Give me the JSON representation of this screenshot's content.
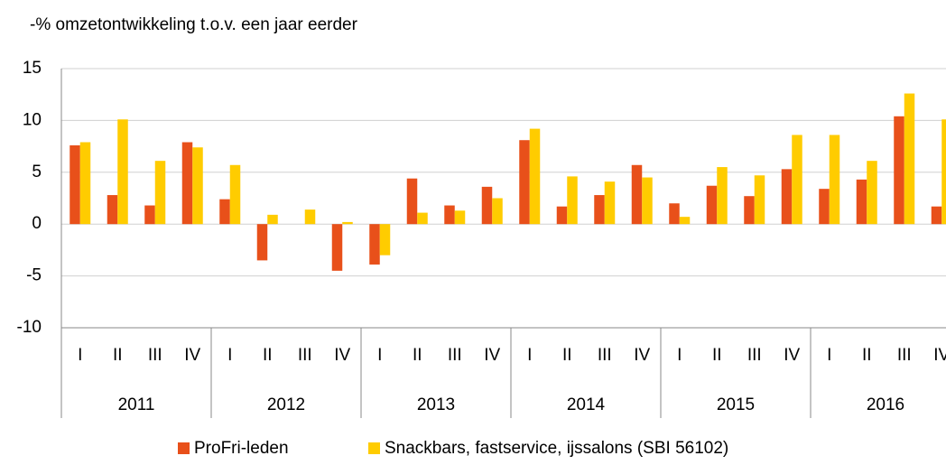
{
  "chart_data": {
    "type": "bar",
    "y_label": "-% omzetontwikkeling t.o.v. een jaar eerder",
    "categories": [
      "I",
      "II",
      "III",
      "IV",
      "I",
      "II",
      "III",
      "IV",
      "I",
      "II",
      "III",
      "IV",
      "I",
      "II",
      "III",
      "IV",
      "I",
      "II",
      "III",
      "IV",
      "I",
      "II",
      "III",
      "IV"
    ],
    "years": [
      "2011",
      "2012",
      "2013",
      "2014",
      "2015",
      "2016"
    ],
    "series": [
      {
        "name": "ProFri-leden",
        "color": "#e8501a",
        "values": [
          7.6,
          2.8,
          1.8,
          7.9,
          2.4,
          -3.5,
          0,
          -4.5,
          -3.9,
          4.4,
          1.8,
          3.6,
          8.1,
          1.7,
          2.8,
          5.7,
          2.0,
          3.7,
          2.7,
          5.3,
          3.4,
          4.3,
          10.4,
          1.7
        ]
      },
      {
        "name": "Snackbars, fastservice, ijssalons (SBI 56102)",
        "color": "#ffcc00",
        "values": [
          7.9,
          10.1,
          6.1,
          7.4,
          5.7,
          0.9,
          1.4,
          0.2,
          -3.0,
          1.1,
          1.3,
          2.5,
          9.2,
          4.6,
          4.1,
          4.5,
          0.7,
          5.5,
          4.7,
          8.6,
          8.6,
          6.1,
          12.6,
          10.1
        ]
      }
    ],
    "ylim": [
      -10,
      15
    ],
    "yticks": [
      -10,
      -5,
      0,
      5,
      10,
      15
    ],
    "grid": true
  }
}
